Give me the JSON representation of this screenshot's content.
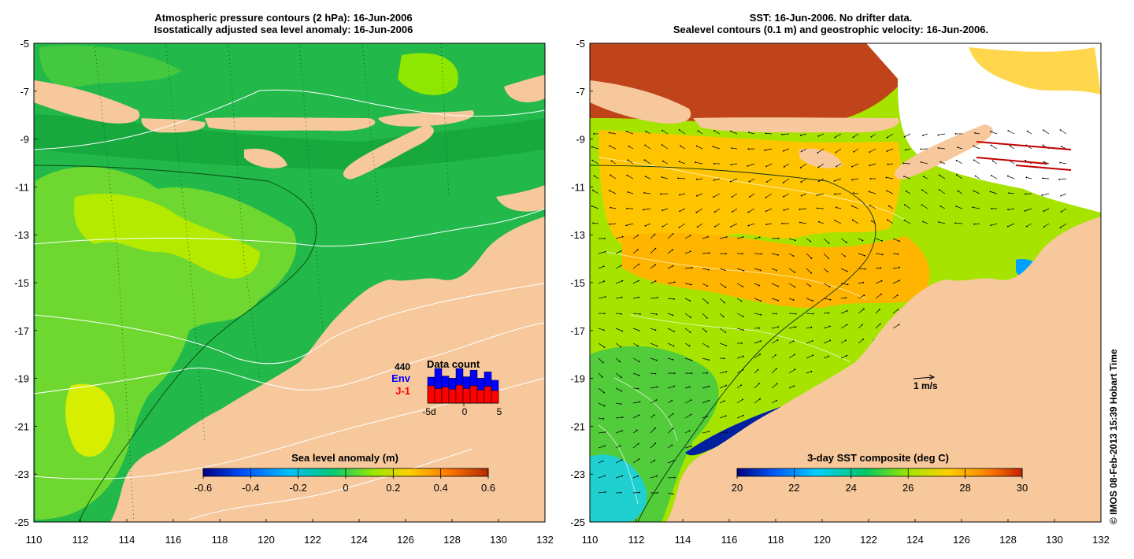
{
  "left_panel": {
    "title_line1": "Atmospheric pressure contours (2 hPa): 16-Jun-2006",
    "title_line2": "Isostatically adjusted sea level anomaly: 16-Jun-2006",
    "colorbar": {
      "label": "Sea level anomaly (m)",
      "ticks": [
        "-0.6",
        "-0.4",
        "-0.2",
        "0",
        "0.2",
        "0.4",
        "0.6"
      ],
      "colors": [
        "#000080",
        "#0050ff",
        "#00c0ff",
        "#00c878",
        "#9be800",
        "#ffd000",
        "#ff7800",
        "#b42800"
      ]
    },
    "inset": {
      "count": "440",
      "env_label": "Env",
      "j1_label": "J-1",
      "title": "Data count",
      "x_ticks": [
        "-5d",
        "0",
        "5"
      ],
      "env_color": "#0000ff",
      "j1_color": "#ff0000",
      "env_values": [
        0.75,
        1.0,
        0.78,
        0.72,
        1.0,
        0.76,
        0.95,
        0.72,
        0.9,
        0.66
      ],
      "j1_values": [
        0.5,
        0.42,
        0.46,
        0.4,
        0.52,
        0.42,
        0.5,
        0.38,
        0.48,
        0.36
      ]
    }
  },
  "right_panel": {
    "title_line1": "SST: 16-Jun-2006. No drifter data.",
    "title_line2": "Sealevel contours (0.1 m) and geostrophic velocity: 16-Jun-2006.",
    "colorbar": {
      "label": "3-day SST composite (deg C)",
      "ticks": [
        "20",
        "22",
        "24",
        "26",
        "28",
        "30"
      ],
      "colors": [
        "#000080",
        "#0060ff",
        "#00d0ff",
        "#00c864",
        "#a0e600",
        "#ffd000",
        "#ff8000",
        "#c82000"
      ]
    },
    "scale_label": "1 m/s"
  },
  "axes": {
    "x_ticks": [
      "110",
      "112",
      "114",
      "116",
      "118",
      "120",
      "122",
      "124",
      "126",
      "128",
      "130",
      "132"
    ],
    "y_ticks": [
      "-5",
      "-7",
      "-9",
      "-11",
      "-13",
      "-15",
      "-17",
      "-19",
      "-21",
      "-23",
      "-25"
    ]
  },
  "credit": "© IMOS 08-Feb-2013 15:39 Hobart Time",
  "colors": {
    "land": "#f7c89c",
    "sla_ocean": "#22b84a",
    "sla_ocean_high": "#8fe600",
    "sst_ocean": "#a6e400",
    "sst_warm": "#ffc400",
    "sst_hot": "#c0441a"
  }
}
